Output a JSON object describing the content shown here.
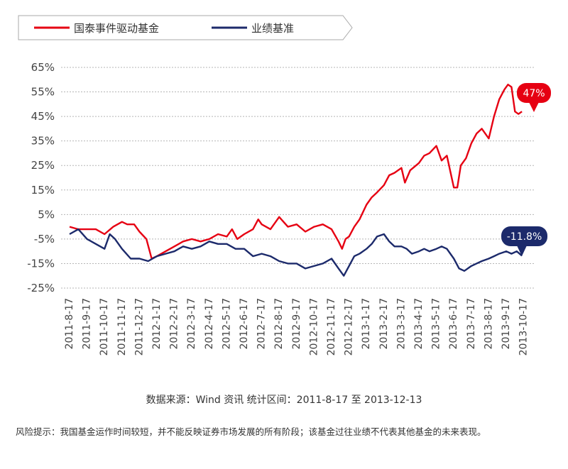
{
  "legend": {
    "items": [
      {
        "name": "国泰事件驱动基金",
        "color": "#e60012"
      },
      {
        "name": "业绩基准",
        "color": "#1c2a6b"
      }
    ]
  },
  "source_note": "数据来源：Wind 资讯 统计区间：2011-8-17 至 2013-12-13",
  "disclaimer": "风险提示：我国基金运作时间较短，并不能反映证券市场发展的所有阶段；该基金过往业绩不代表其他基金的未来表现。",
  "chart_data": {
    "type": "line",
    "yticks": [
      "65%",
      "55%",
      "45%",
      "35%",
      "25%",
      "15%",
      "5%",
      "-5%",
      "-15%",
      "-25%"
    ],
    "ylim": [
      -25,
      65
    ],
    "grid": true,
    "legend_position": "top",
    "categories": [
      "2011-8-17",
      "2011-9-17",
      "2011-10-17",
      "2011-11-17",
      "2011-12-17",
      "2012-1-17",
      "2012-2-17",
      "2012-3-17",
      "2012-4-17",
      "2012-5-17",
      "2012-6-17",
      "2012-7-17",
      "2012-8-17",
      "2012-9-17",
      "2012-10-17",
      "2012-11-17",
      "2012-12-17",
      "2013-1-17",
      "2013-2-17",
      "2013-3-17",
      "2013-4-17",
      "2013-5-17",
      "2013-6-17",
      "2013-7-17",
      "2013-8-17",
      "2013-9-17",
      "2013-10-17"
    ],
    "end_labels": [
      {
        "series": "国泰事件驱动基金",
        "text": "47%"
      },
      {
        "series": "业绩基准",
        "text": "-11.8%"
      }
    ],
    "series": [
      {
        "name": "国泰事件驱动基金",
        "color": "#e60012",
        "values": [
          [
            0,
            0
          ],
          [
            0.5,
            -1
          ],
          [
            1,
            -1
          ],
          [
            1.5,
            -1
          ],
          [
            2,
            -3
          ],
          [
            2.5,
            0
          ],
          [
            3,
            2
          ],
          [
            3.3,
            1
          ],
          [
            3.7,
            1
          ],
          [
            4,
            -2
          ],
          [
            4.4,
            -5
          ],
          [
            4.7,
            -13
          ],
          [
            5,
            -12
          ],
          [
            5.5,
            -10
          ],
          [
            6,
            -8
          ],
          [
            6.5,
            -6
          ],
          [
            7,
            -5
          ],
          [
            7.5,
            -6
          ],
          [
            8,
            -5
          ],
          [
            8.5,
            -3
          ],
          [
            9,
            -4
          ],
          [
            9.3,
            -1
          ],
          [
            9.6,
            -5
          ],
          [
            10,
            -3
          ],
          [
            10.5,
            -1
          ],
          [
            10.8,
            3
          ],
          [
            11,
            1
          ],
          [
            11.5,
            -1
          ],
          [
            12,
            4
          ],
          [
            12.5,
            0
          ],
          [
            13,
            1
          ],
          [
            13.5,
            -2
          ],
          [
            14,
            0
          ],
          [
            14.5,
            1
          ],
          [
            15,
            -1
          ],
          [
            15.4,
            -6
          ],
          [
            15.6,
            -9
          ],
          [
            15.8,
            -5
          ],
          [
            16,
            -4
          ],
          [
            16.3,
            0
          ],
          [
            16.6,
            3
          ],
          [
            17,
            9
          ],
          [
            17.3,
            12
          ],
          [
            17.6,
            14
          ],
          [
            18,
            17
          ],
          [
            18.3,
            21
          ],
          [
            18.6,
            22
          ],
          [
            19,
            24
          ],
          [
            19.2,
            18
          ],
          [
            19.5,
            23
          ],
          [
            20,
            26
          ],
          [
            20.3,
            29
          ],
          [
            20.6,
            30
          ],
          [
            21,
            33
          ],
          [
            21.3,
            27
          ],
          [
            21.6,
            29
          ],
          [
            22,
            16
          ],
          [
            22.2,
            16
          ],
          [
            22.4,
            25
          ],
          [
            22.7,
            28
          ],
          [
            23,
            34
          ],
          [
            23.3,
            38
          ],
          [
            23.6,
            40
          ],
          [
            24,
            36
          ],
          [
            24.3,
            45
          ],
          [
            24.6,
            52
          ],
          [
            24.9,
            56
          ],
          [
            25.1,
            58
          ],
          [
            25.3,
            57
          ],
          [
            25.5,
            47
          ],
          [
            25.7,
            46
          ],
          [
            25.9,
            47
          ]
        ]
      },
      {
        "name": "业绩基准",
        "color": "#1c2a6b",
        "values": [
          [
            0,
            -3
          ],
          [
            0.5,
            -1
          ],
          [
            1,
            -5
          ],
          [
            1.5,
            -7
          ],
          [
            2,
            -9
          ],
          [
            2.3,
            -3
          ],
          [
            2.6,
            -5
          ],
          [
            3,
            -9
          ],
          [
            3.5,
            -13
          ],
          [
            4,
            -13
          ],
          [
            4.5,
            -14
          ],
          [
            5,
            -12
          ],
          [
            5.5,
            -11
          ],
          [
            6,
            -10
          ],
          [
            6.5,
            -8
          ],
          [
            7,
            -9
          ],
          [
            7.5,
            -8
          ],
          [
            8,
            -6
          ],
          [
            8.5,
            -7
          ],
          [
            9,
            -7
          ],
          [
            9.5,
            -9
          ],
          [
            10,
            -9
          ],
          [
            10.5,
            -12
          ],
          [
            11,
            -11
          ],
          [
            11.5,
            -12
          ],
          [
            12,
            -14
          ],
          [
            12.5,
            -15
          ],
          [
            13,
            -15
          ],
          [
            13.5,
            -17
          ],
          [
            14,
            -16
          ],
          [
            14.5,
            -15
          ],
          [
            15,
            -13
          ],
          [
            15.4,
            -17
          ],
          [
            15.7,
            -20
          ],
          [
            16,
            -16
          ],
          [
            16.3,
            -12
          ],
          [
            16.6,
            -11
          ],
          [
            17,
            -9
          ],
          [
            17.3,
            -7
          ],
          [
            17.6,
            -4
          ],
          [
            18,
            -3
          ],
          [
            18.3,
            -6
          ],
          [
            18.6,
            -8
          ],
          [
            19,
            -8
          ],
          [
            19.3,
            -9
          ],
          [
            19.6,
            -11
          ],
          [
            20,
            -10
          ],
          [
            20.3,
            -9
          ],
          [
            20.6,
            -10
          ],
          [
            21,
            -9
          ],
          [
            21.3,
            -8
          ],
          [
            21.6,
            -9
          ],
          [
            22,
            -13
          ],
          [
            22.3,
            -17
          ],
          [
            22.6,
            -18
          ],
          [
            23,
            -16
          ],
          [
            23.3,
            -15
          ],
          [
            23.6,
            -14
          ],
          [
            24,
            -13
          ],
          [
            24.3,
            -12
          ],
          [
            24.6,
            -11
          ],
          [
            25,
            -10
          ],
          [
            25.3,
            -11
          ],
          [
            25.6,
            -10
          ],
          [
            25.9,
            -11.8
          ]
        ]
      }
    ]
  }
}
